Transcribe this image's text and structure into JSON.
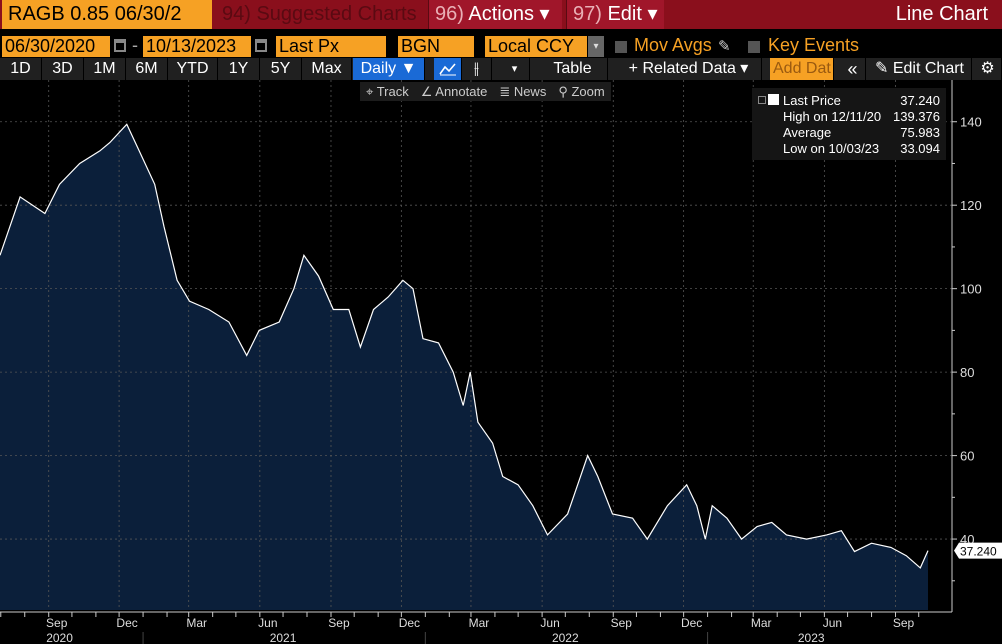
{
  "topbar": {
    "ticker": "RAGB 0.85 06/30/2",
    "suggested_num": "94)",
    "suggested": "Suggested Charts",
    "actions_num": "96)",
    "actions": "Actions ▾",
    "edit_num": "97)",
    "edit": "Edit ▾",
    "title": "Line Chart"
  },
  "controls": {
    "start_date": "06/30/2020",
    "dash": "-",
    "end_date": "10/13/2023",
    "field": "Last Px",
    "source": "BGN",
    "currency": "Local CCY",
    "mov_avgs": "Mov Avgs",
    "key_events": "Key Events"
  },
  "toolbar": {
    "periods": [
      "1D",
      "3D",
      "1M",
      "6M",
      "YTD",
      "1Y",
      "5Y",
      "Max"
    ],
    "frequency": "Daily ▼",
    "table": "Table",
    "related": "+ Related Data ▾",
    "add_data": "Add Dat",
    "collapse": "«",
    "edit_chart": "✎ Edit Chart",
    "settings": "⚙"
  },
  "tools": {
    "track": "⌖ Track",
    "annotate": "∠ Annotate",
    "news": "≣ News",
    "zoom": "⚲ Zoom"
  },
  "legend": {
    "last_label": "Last Price",
    "last_value": "37.240",
    "high_label": "High on 12/11/20",
    "high_value": "139.376",
    "avg_label": "Average",
    "avg_value": "75.983",
    "low_label": "Low on 10/03/23",
    "low_value": "33.094"
  },
  "colors": {
    "fill": "#0b1f3a",
    "line": "#ffffff",
    "accent": "#f6a124",
    "bar": "#8a0f1c"
  },
  "chart_data": {
    "type": "area",
    "title": "Line Chart",
    "series": [
      {
        "name": "Last Price",
        "x": [
          "2020-06-30",
          "2020-07-26",
          "2020-08-27",
          "2020-09-15",
          "2020-10-11",
          "2020-11-06",
          "2020-11-19",
          "2020-12-11",
          "2020-12-27",
          "2021-01-16",
          "2021-01-28",
          "2021-02-14",
          "2021-03-02",
          "2021-03-27",
          "2021-04-22",
          "2021-05-15",
          "2021-05-31",
          "2021-06-26",
          "2021-07-15",
          "2021-07-28",
          "2021-08-16",
          "2021-09-04",
          "2021-09-24",
          "2021-10-09",
          "2021-10-26",
          "2021-11-14",
          "2021-12-03",
          "2021-12-16",
          "2021-12-29",
          "2022-01-18",
          "2022-02-06",
          "2022-02-19",
          "2022-02-28",
          "2022-03-10",
          "2022-03-29",
          "2022-04-11",
          "2022-05-01",
          "2022-05-20",
          "2022-06-08",
          "2022-07-04",
          "2022-07-30",
          "2022-08-12",
          "2022-08-31",
          "2022-09-26",
          "2022-10-15",
          "2022-11-10",
          "2022-12-05",
          "2022-12-18",
          "2022-12-29",
          "2023-01-07",
          "2023-01-26",
          "2023-02-14",
          "2023-03-06",
          "2023-03-25",
          "2023-04-13",
          "2023-05-09",
          "2023-06-04",
          "2023-06-23",
          "2023-07-10",
          "2023-08-01",
          "2023-08-26",
          "2023-09-15",
          "2023-10-03",
          "2023-10-13"
        ],
        "y": [
          108,
          122,
          118,
          125,
          130,
          133,
          135,
          139.376,
          133,
          125,
          115,
          102,
          97,
          95,
          92,
          84,
          90,
          92,
          100,
          108,
          103,
          95,
          95,
          86,
          95,
          98,
          102,
          100,
          88,
          87,
          80,
          72,
          80,
          68,
          63,
          55,
          53,
          48,
          41,
          46,
          60,
          55,
          46,
          45,
          40,
          48,
          53,
          48,
          40,
          48,
          45,
          40,
          43,
          44,
          41,
          40,
          41,
          42,
          37,
          39,
          38,
          36,
          33.094,
          37.24
        ]
      }
    ],
    "xlim": [
      "2020-06-30",
      "2023-10-13"
    ],
    "ylim": [
      23,
      150
    ],
    "y_ticks": [
      40,
      60,
      80,
      100,
      120,
      140
    ],
    "x_ticks": [
      {
        "date": "2020-09-01",
        "label": "Sep"
      },
      {
        "date": "2020-12-01",
        "label": "Dec"
      },
      {
        "date": "2021-03-01",
        "label": "Mar"
      },
      {
        "date": "2021-06-01",
        "label": "Jun"
      },
      {
        "date": "2021-09-01",
        "label": "Sep"
      },
      {
        "date": "2021-12-01",
        "label": "Dec"
      },
      {
        "date": "2022-03-01",
        "label": "Mar"
      },
      {
        "date": "2022-06-01",
        "label": "Jun"
      },
      {
        "date": "2022-09-01",
        "label": "Sep"
      },
      {
        "date": "2022-12-01",
        "label": "Dec"
      },
      {
        "date": "2023-03-01",
        "label": "Mar"
      },
      {
        "date": "2023-06-01",
        "label": "Jun"
      },
      {
        "date": "2023-09-01",
        "label": "Sep"
      }
    ],
    "year_labels": [
      {
        "date": "2020-09-15",
        "label": "2020"
      },
      {
        "date": "2021-07-01",
        "label": "2021"
      },
      {
        "date": "2022-07-01",
        "label": "2022"
      },
      {
        "date": "2023-05-15",
        "label": "2023"
      }
    ],
    "year_breaks": [
      "2021-01-01",
      "2022-01-01",
      "2023-01-01"
    ],
    "last_value_label": "37.240",
    "grid": true,
    "legend_position": "top-right"
  }
}
